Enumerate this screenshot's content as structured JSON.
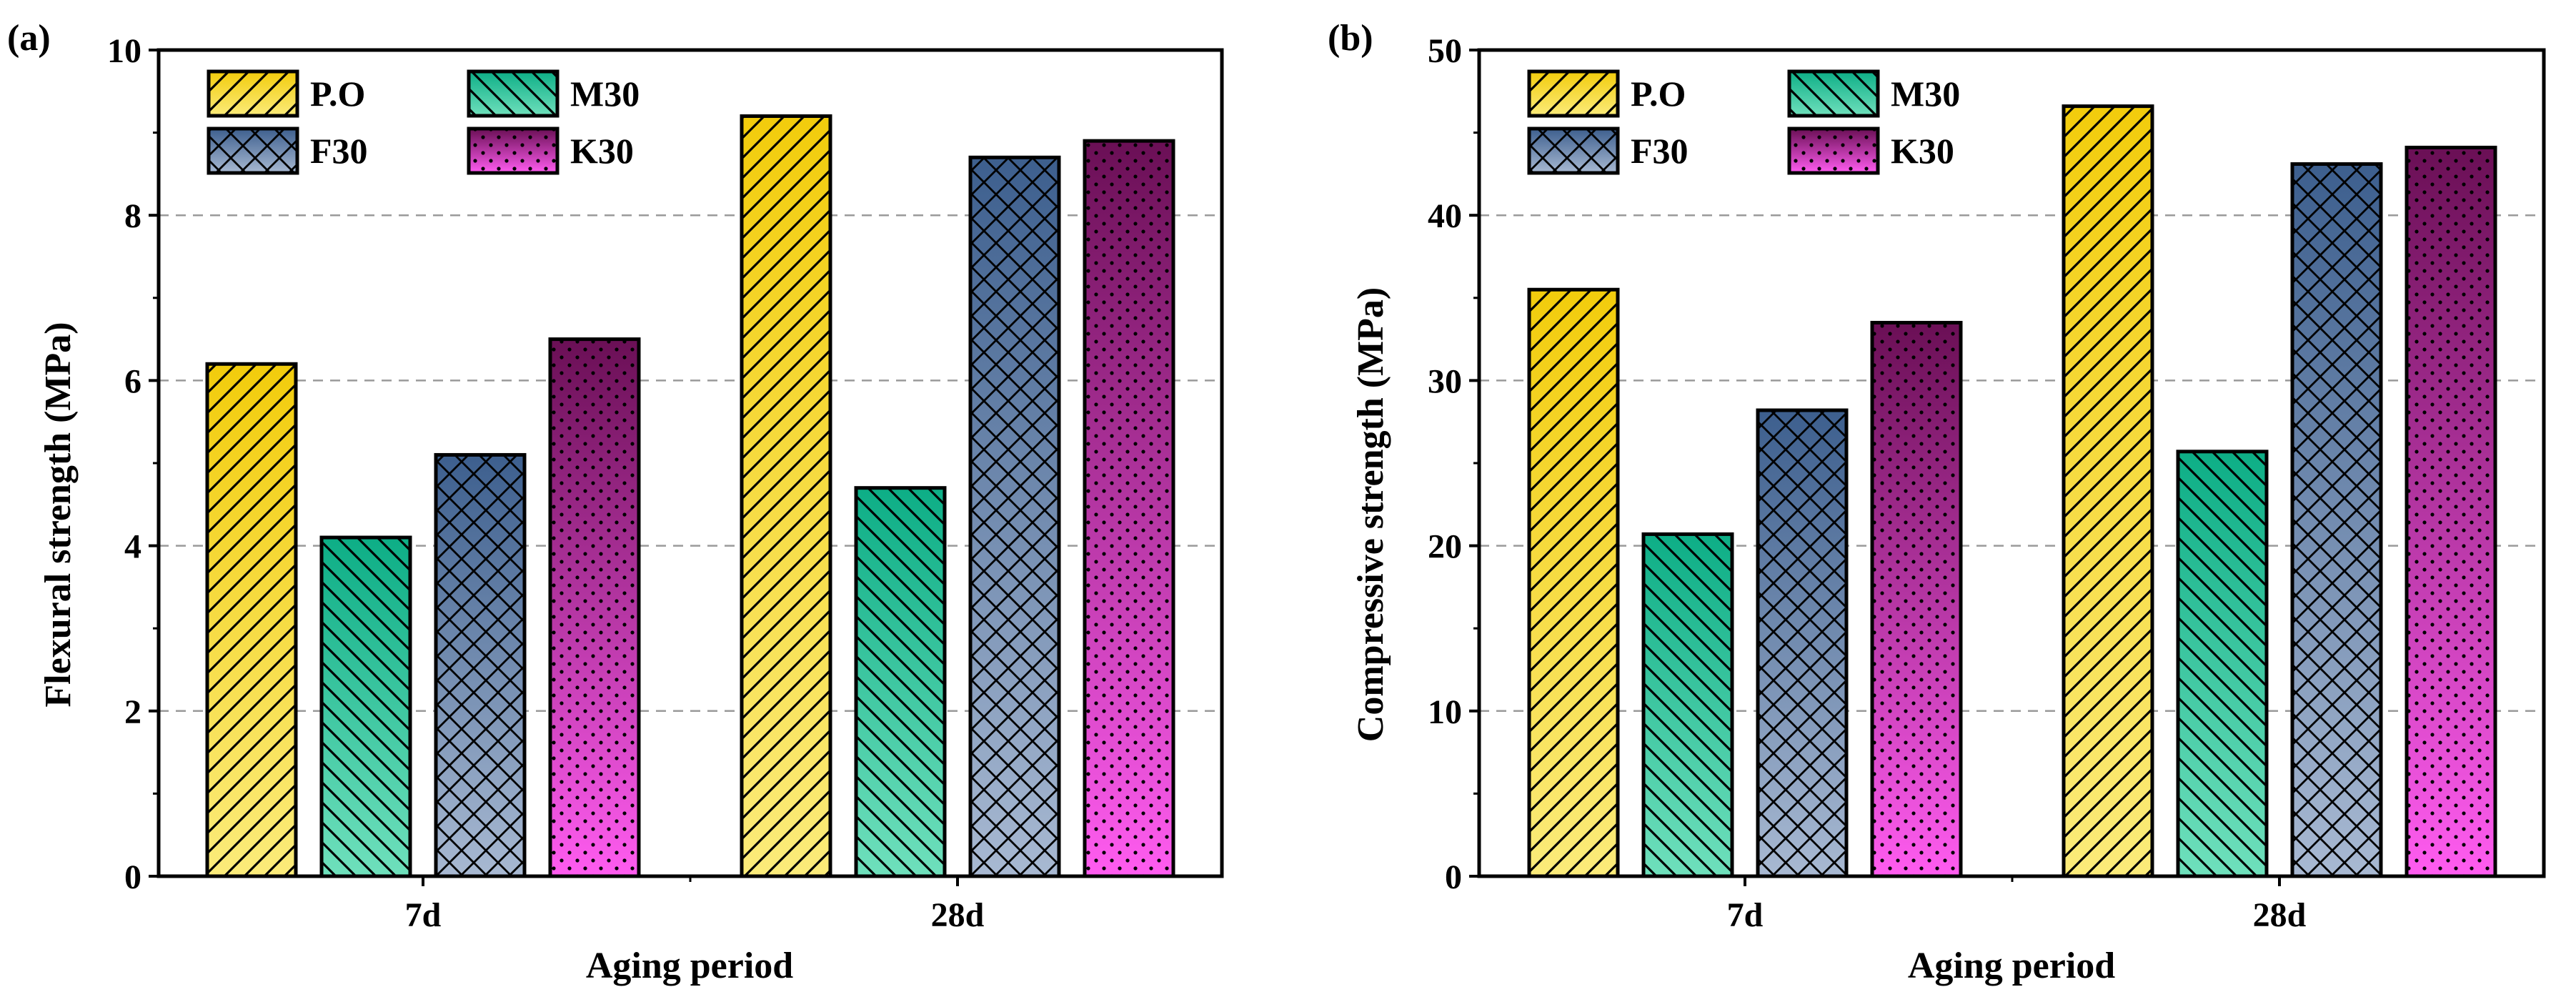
{
  "colors": {
    "P.O": {
      "top": "#F2CC0C",
      "bottom": "#FBEB7A"
    },
    "M30": {
      "top": "#0DAE86",
      "bottom": "#6FE0BC"
    },
    "F30": {
      "top": "#3D5F8E",
      "bottom": "#A8B9D2"
    },
    "K30": {
      "top": "#6A0F55",
      "bottom": "#FF5CF0"
    }
  },
  "chart_data": [
    {
      "type": "bar",
      "panel": "(a)",
      "categories": [
        "7d",
        "28d"
      ],
      "series": [
        {
          "name": "P.O",
          "values": [
            6.2,
            9.2
          ]
        },
        {
          "name": "M30",
          "values": [
            4.1,
            4.7
          ]
        },
        {
          "name": "F30",
          "values": [
            5.1,
            8.7
          ]
        },
        {
          "name": "K30",
          "values": [
            6.5,
            8.9
          ]
        }
      ],
      "title": "",
      "xlabel": "Aging period",
      "ylabel": "Flexural strength (MPa)",
      "ylim": [
        0,
        10
      ],
      "yticks": [
        "0",
        "2",
        "4",
        "6",
        "8",
        "10"
      ],
      "grid": "dashed-horizontal",
      "legend_position": "top-left"
    },
    {
      "type": "bar",
      "panel": "(b)",
      "categories": [
        "7d",
        "28d"
      ],
      "series": [
        {
          "name": "P.O",
          "values": [
            35.5,
            46.6
          ]
        },
        {
          "name": "M30",
          "values": [
            20.7,
            25.7
          ]
        },
        {
          "name": "F30",
          "values": [
            28.2,
            43.1
          ]
        },
        {
          "name": "K30",
          "values": [
            33.5,
            44.1
          ]
        }
      ],
      "title": "",
      "xlabel": "Aging period",
      "ylabel": "Compressive strength (MPa)",
      "ylim": [
        0,
        50
      ],
      "yticks": [
        "0",
        "10",
        "20",
        "30",
        "40",
        "50"
      ],
      "grid": "dashed-horizontal",
      "legend_position": "top-left"
    }
  ]
}
